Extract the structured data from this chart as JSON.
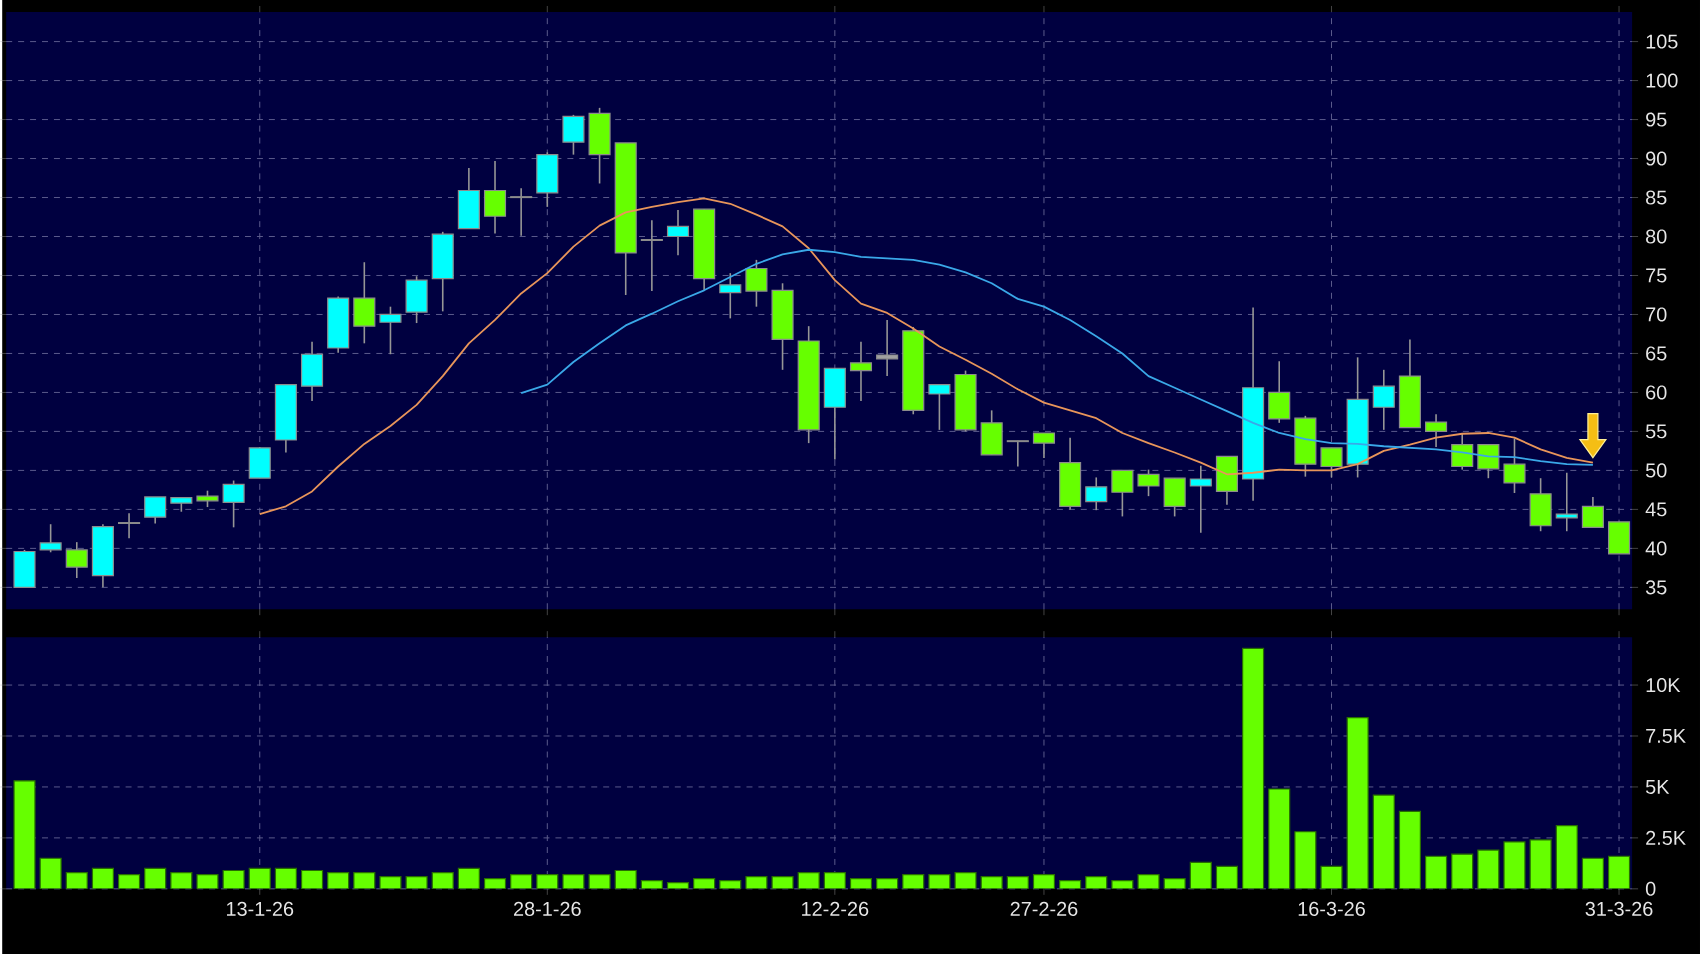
{
  "chart_data": [
    {
      "type": "candlestick",
      "categories": [
        null,
        null,
        null,
        null,
        null,
        null,
        null,
        null,
        null,
        null,
        null,
        null,
        null,
        null,
        null,
        null,
        null,
        null,
        null,
        null,
        null,
        null,
        null,
        null,
        null,
        null,
        null,
        null,
        null,
        null,
        null,
        null,
        null,
        null,
        null,
        null,
        null,
        null,
        null,
        null,
        null,
        null,
        null,
        null,
        null,
        null,
        null,
        null,
        null,
        null,
        null,
        null,
        null,
        null,
        null,
        null,
        null,
        null,
        null,
        null,
        null,
        null
      ],
      "ohlc": [
        [
          35.0,
          39.8,
          35.0,
          39.6
        ],
        [
          39.8,
          43.1,
          39.5,
          40.7
        ],
        [
          39.8,
          40.8,
          36.2,
          37.6
        ],
        [
          36.5,
          43.1,
          35.0,
          42.8
        ],
        [
          43.2,
          44.5,
          41.3,
          43.3
        ],
        [
          44.0,
          46.6,
          43.2,
          46.6
        ],
        [
          45.8,
          46.5,
          44.7,
          46.5
        ],
        [
          46.7,
          47.4,
          45.3,
          46.1
        ],
        [
          45.9,
          48.7,
          42.7,
          48.2
        ],
        [
          49.0,
          53.0,
          49.0,
          52.9
        ],
        [
          53.9,
          61.0,
          52.3,
          61.0
        ],
        [
          60.8,
          66.5,
          58.9,
          64.9
        ],
        [
          65.7,
          72.3,
          65.1,
          72.1
        ],
        [
          72.1,
          76.7,
          66.3,
          68.5
        ],
        [
          69.0,
          71.0,
          64.9,
          70.0
        ],
        [
          70.3,
          74.9,
          68.9,
          74.4
        ],
        [
          74.6,
          80.6,
          70.4,
          80.3
        ],
        [
          81.0,
          88.8,
          81.0,
          85.9
        ],
        [
          85.9,
          89.7,
          80.4,
          82.6
        ],
        [
          85.0,
          86.2,
          80.1,
          85.1
        ],
        [
          85.6,
          90.8,
          83.8,
          90.5
        ],
        [
          92.1,
          95.6,
          90.5,
          95.4
        ],
        [
          95.8,
          96.5,
          86.8,
          90.5
        ],
        [
          92.0,
          92.0,
          72.5,
          77.9
        ],
        [
          79.6,
          82.1,
          73.0,
          79.5
        ],
        [
          80.0,
          83.4,
          77.6,
          81.3
        ],
        [
          83.5,
          83.5,
          73.0,
          74.6
        ],
        [
          72.8,
          75.3,
          69.5,
          73.8
        ],
        [
          75.9,
          77.0,
          71.0,
          73.0
        ],
        [
          73.1,
          74.0,
          62.9,
          66.8
        ],
        [
          66.6,
          68.5,
          53.5,
          55.2
        ],
        [
          58.1,
          63.1,
          51.4,
          63.1
        ],
        [
          63.8,
          66.5,
          58.9,
          62.8
        ],
        [
          64.8,
          69.3,
          62.1,
          64.3
        ],
        [
          67.9,
          68.4,
          57.2,
          57.7
        ],
        [
          59.8,
          61.0,
          55.2,
          61.0
        ],
        [
          62.3,
          62.8,
          55.0,
          55.2
        ],
        [
          56.1,
          57.7,
          52.0,
          52.0
        ],
        [
          53.8,
          53.8,
          50.5,
          53.7
        ],
        [
          54.8,
          54.8,
          51.6,
          53.5
        ],
        [
          51.0,
          54.2,
          45.0,
          45.4
        ],
        [
          46.0,
          49.1,
          44.9,
          47.9
        ],
        [
          50.0,
          50.0,
          44.1,
          47.2
        ],
        [
          49.5,
          50.1,
          46.7,
          48.0
        ],
        [
          49.0,
          49.0,
          44.1,
          45.4
        ],
        [
          48.0,
          50.6,
          42.0,
          48.9
        ],
        [
          51.8,
          51.8,
          45.6,
          47.3
        ],
        [
          48.9,
          70.9,
          46.1,
          60.6
        ],
        [
          60.0,
          64.0,
          56.1,
          56.6
        ],
        [
          56.7,
          57.0,
          49.2,
          50.8
        ],
        [
          52.9,
          52.9,
          49.1,
          50.5
        ],
        [
          50.8,
          64.5,
          49.1,
          59.1
        ],
        [
          58.1,
          62.9,
          55.2,
          60.8
        ],
        [
          62.1,
          66.8,
          55.5,
          55.5
        ],
        [
          56.2,
          57.2,
          53.0,
          55.0
        ],
        [
          53.3,
          54.8,
          50.1,
          50.5
        ],
        [
          53.3,
          53.3,
          49.0,
          50.2
        ],
        [
          50.8,
          54.1,
          47.1,
          48.4
        ],
        [
          47.0,
          49.0,
          42.2,
          42.9
        ],
        [
          43.9,
          49.7,
          42.2,
          44.4
        ],
        [
          45.4,
          46.6,
          42.7,
          42.7
        ],
        [
          43.4,
          43.4,
          39.3,
          39.3
        ]
      ],
      "colors": [
        "#00ffff",
        "#00ffff",
        "#66ff00",
        "#00ffff",
        "#a0a0a0",
        "#00ffff",
        "#00ffff",
        "#66ff00",
        "#00ffff",
        "#00ffff",
        "#00ffff",
        "#00ffff",
        "#00ffff",
        "#66ff00",
        "#00ffff",
        "#00ffff",
        "#00ffff",
        "#00ffff",
        "#66ff00",
        "#a0a0a0",
        "#00ffff",
        "#00ffff",
        "#66ff00",
        "#66ff00",
        "#a0a0a0",
        "#00ffff",
        "#66ff00",
        "#00ffff",
        "#66ff00",
        "#66ff00",
        "#66ff00",
        "#00ffff",
        "#66ff00",
        "#a0a0a0",
        "#66ff00",
        "#00ffff",
        "#66ff00",
        "#66ff00",
        "#a0a0a0",
        "#66ff00",
        "#66ff00",
        "#00ffff",
        "#66ff00",
        "#66ff00",
        "#66ff00",
        "#00ffff",
        "#66ff00",
        "#00ffff",
        "#66ff00",
        "#66ff00",
        "#66ff00",
        "#00ffff",
        "#00ffff",
        "#66ff00",
        "#66ff00",
        "#66ff00",
        "#66ff00",
        "#66ff00",
        "#66ff00",
        "#00ffff",
        "#66ff00",
        "#66ff00"
      ],
      "series": [
        {
          "type": "line",
          "color": "#e8955a",
          "values": [
            null,
            null,
            null,
            null,
            null,
            null,
            null,
            null,
            null,
            44.4,
            45.4,
            47.3,
            50.5,
            53.4,
            55.7,
            58.4,
            62.1,
            66.3,
            69.3,
            72.7,
            75.3,
            78.7,
            81.4,
            83.1,
            83.8,
            84.4,
            84.9,
            84.2,
            82.8,
            81.3,
            78.5,
            74.4,
            71.4,
            70.2,
            68.2,
            65.9,
            64.2,
            62.4,
            60.4,
            58.7,
            57.7,
            56.7,
            54.8,
            53.5,
            52.3,
            51.0,
            49.5,
            49.7,
            50.1,
            50.0,
            50.0,
            50.8,
            52.5,
            53.3,
            54.2,
            54.7,
            54.8,
            54.2,
            52.7,
            51.6,
            51.0,
            null
          ]
        },
        {
          "type": "line",
          "color": "#3aa8e8",
          "values": [
            null,
            null,
            null,
            null,
            null,
            null,
            null,
            null,
            null,
            null,
            null,
            null,
            null,
            null,
            null,
            null,
            null,
            null,
            null,
            59.9,
            61.0,
            63.9,
            66.3,
            68.6,
            70.1,
            71.7,
            73.1,
            74.8,
            76.5,
            77.7,
            78.3,
            78.0,
            77.4,
            77.2,
            77.0,
            76.4,
            75.4,
            74.0,
            72.0,
            71.0,
            69.3,
            67.2,
            65.0,
            62.1,
            60.6,
            59.1,
            57.6,
            56.1,
            54.8,
            54.0,
            53.5,
            53.4,
            53.1,
            52.9,
            52.7,
            52.3,
            51.8,
            51.7,
            51.2,
            50.8,
            50.7,
            null
          ]
        }
      ],
      "ylim": [
        32.2,
        108.8
      ],
      "yticks": [
        35,
        40,
        45,
        50,
        55,
        60,
        65,
        70,
        75,
        80,
        85,
        90,
        95,
        100,
        105
      ],
      "grid": true,
      "tick_labels": "y"
    },
    {
      "type": "bar",
      "categories": [
        null,
        null,
        null,
        null,
        null,
        null,
        null,
        null,
        null,
        "13-1-26",
        null,
        null,
        null,
        null,
        null,
        null,
        null,
        null,
        null,
        null,
        "28-1-26",
        null,
        null,
        null,
        null,
        null,
        null,
        null,
        null,
        null,
        null,
        "12-2-26",
        null,
        null,
        null,
        null,
        null,
        null,
        null,
        "27-2-26",
        null,
        null,
        null,
        null,
        null,
        null,
        null,
        null,
        null,
        null,
        "16-3-26",
        null,
        null,
        null,
        null,
        null,
        null,
        null,
        null,
        null,
        null,
        "31-3-26"
      ],
      "values": [
        5300,
        1500,
        800,
        1000,
        700,
        1000,
        800,
        700,
        900,
        1000,
        1000,
        900,
        800,
        800,
        600,
        600,
        800,
        1000,
        500,
        700,
        700,
        700,
        700,
        900,
        400,
        300,
        500,
        400,
        600,
        600,
        800,
        800,
        500,
        500,
        700,
        700,
        800,
        600,
        600,
        700,
        400,
        600,
        400,
        700,
        500,
        1300,
        1100,
        11800,
        4900,
        2800,
        1100,
        8400,
        4600,
        3800,
        1600,
        1700,
        1900,
        2300,
        2400,
        3100,
        1500,
        1600
      ],
      "color": "#66ff00",
      "ylim": [
        0,
        12350
      ],
      "yticks": [
        0,
        {
          "value": 2500,
          "label": "2.5K"
        },
        {
          "value": 5000,
          "label": "5K"
        },
        {
          "value": 7500,
          "label": "7.5K"
        },
        {
          "value": 10000,
          "label": "10K"
        }
      ],
      "grid": true
    }
  ]
}
